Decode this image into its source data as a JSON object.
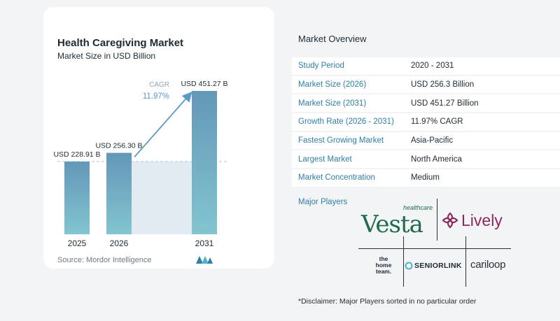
{
  "chart_data": {
    "type": "bar",
    "title": "Health Caregiving Market",
    "subtitle": "Market Size in USD Billion",
    "categories": [
      "2025",
      "2026",
      "2031"
    ],
    "values": [
      228.91,
      256.3,
      451.27
    ],
    "value_labels": [
      "USD 228.91 B",
      "USD 256.30 B",
      "USD 451.27 B"
    ],
    "cagr_label": "CAGR",
    "cagr_value": "11.97%",
    "ylim": [
      0,
      451.27
    ],
    "source": "Source:  Mordor Intelligence",
    "colors": {
      "bar_top": "#6497b8",
      "bar_bottom": "#82c5cf",
      "band": "#e2eaf2",
      "arrow": "#5b9ac4",
      "dash": "#b9c2c9"
    }
  },
  "overview": {
    "title": "Market Overview",
    "rows": [
      {
        "label": "Study Period",
        "value": "2020 - 2031"
      },
      {
        "label": "Market Size (2026)",
        "value": "USD 256.3 Billion"
      },
      {
        "label": "Market Size (2031)",
        "value": "USD 451.27 Billion"
      },
      {
        "label": "Growth Rate (2026 - 2031)",
        "value": "11.97% CAGR"
      },
      {
        "label": "Fastest Growing Market",
        "value": "Asia-Pacific"
      },
      {
        "label": "Largest Market",
        "value": "North America"
      },
      {
        "label": "Market Concentration",
        "value": "Medium"
      }
    ],
    "players_label": "Major Players",
    "players": {
      "vesta_small": "healthcare",
      "vesta_main": "Vesta",
      "lively": "Lively",
      "home_team": [
        "the",
        "home",
        "team."
      ],
      "seniorlink": "SENIORLINK",
      "carealoop": "cariloop"
    },
    "disclaimer": "*Disclaimer: Major Players sorted in no particular order"
  }
}
